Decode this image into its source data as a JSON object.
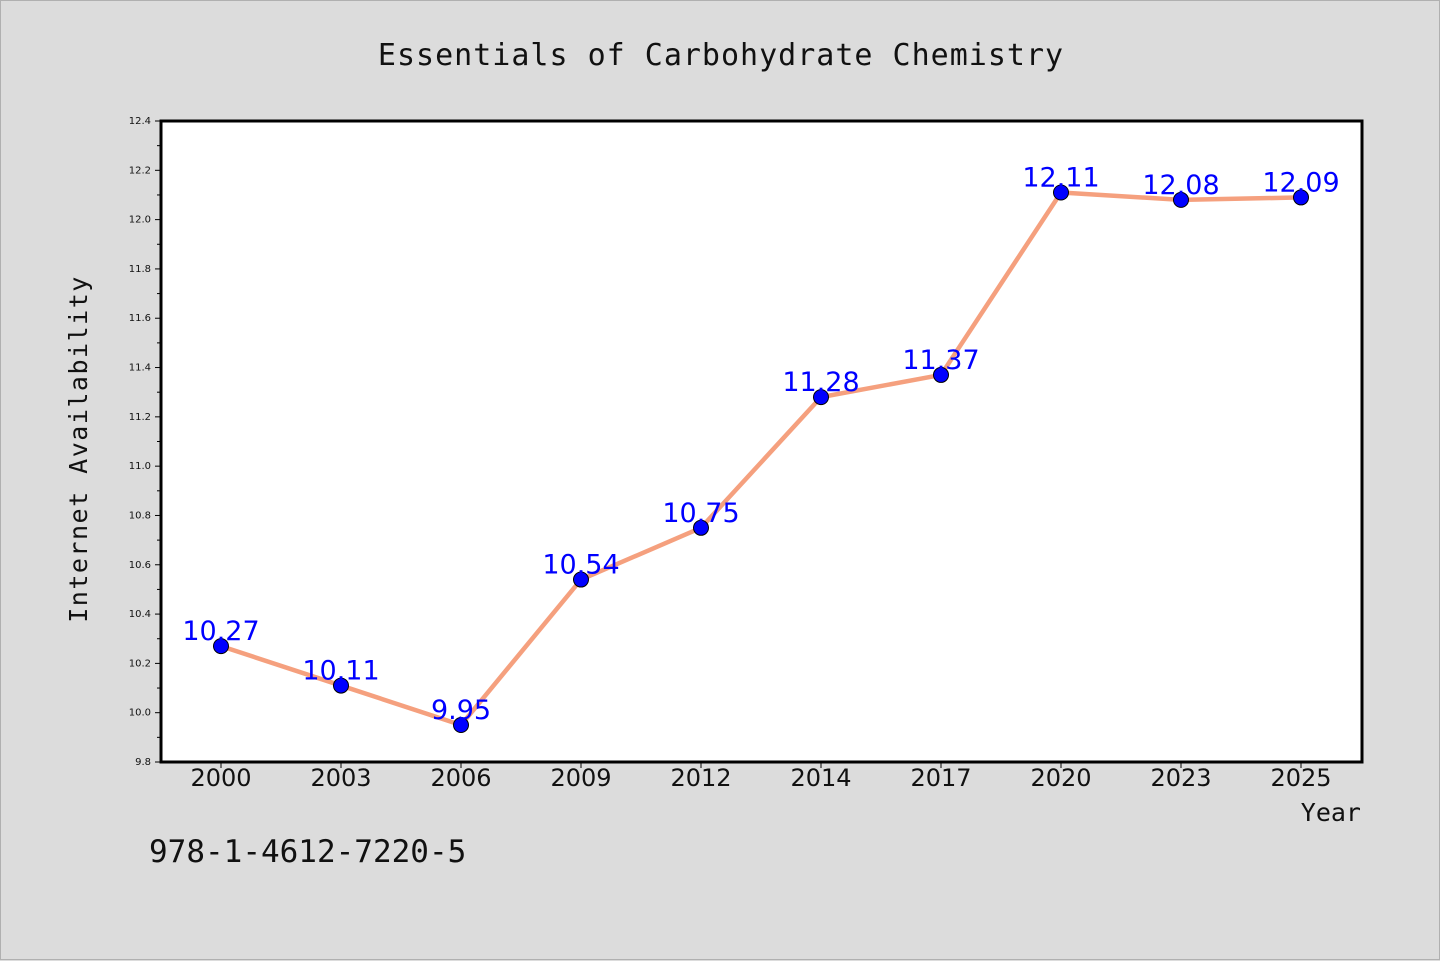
{
  "isbn": "978-1-4612-7220-5",
  "colors": {
    "background": "#dcdcdc",
    "plot_background": "#ffffff",
    "line": "#f5a07e",
    "marker": "#0000ff",
    "data_label": "#0000ff",
    "text": "#111111"
  },
  "chart_data": {
    "type": "line",
    "title": "Essentials of Carbohydrate Chemistry",
    "xlabel": "Year",
    "ylabel": "Internet Availability",
    "categories": [
      "2000",
      "2003",
      "2006",
      "2009",
      "2012",
      "2014",
      "2017",
      "2020",
      "2023",
      "2025"
    ],
    "series": [
      {
        "values": [
          10.27,
          10.11,
          9.95,
          10.54,
          10.75,
          11.28,
          11.37,
          12.11,
          12.08,
          12.09
        ],
        "labels": [
          "10.27",
          "10.11",
          "9.95",
          "10.54",
          "10.75",
          "11.28",
          "11.37",
          "12.11",
          "12.08",
          "12.09"
        ]
      }
    ],
    "ylim": [
      9.8,
      12.4
    ],
    "yticks": [
      "9.8",
      "10.0",
      "10.2",
      "10.4",
      "10.6",
      "10.8",
      "11.0",
      "11.2",
      "11.4",
      "11.6",
      "11.8",
      "12.0",
      "12.2",
      "12.4"
    ],
    "grid": false,
    "legend": "none"
  }
}
